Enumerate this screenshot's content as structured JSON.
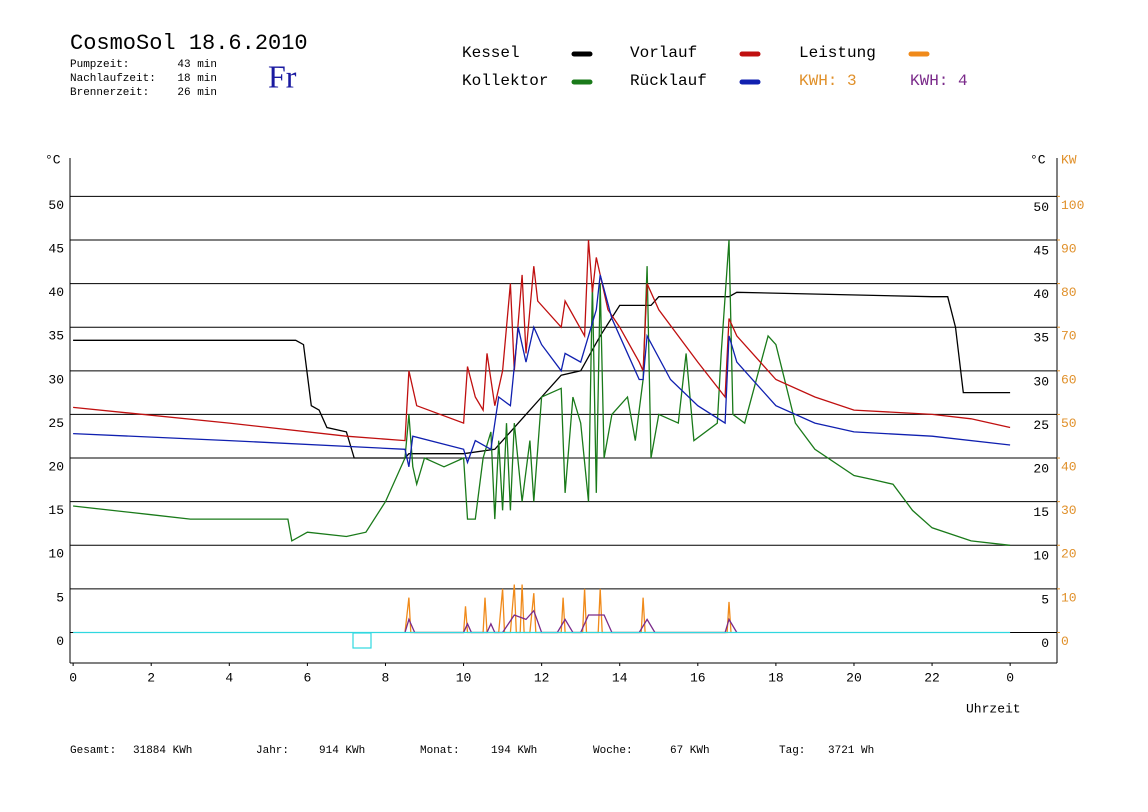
{
  "chart_data": {
    "type": "line",
    "title": "CosmoSol 18.6.2010",
    "weekday": "Fr",
    "stats": [
      {
        "label": "Pumpzeit:",
        "value": "43 min"
      },
      {
        "label": "Nachlaufzeit:",
        "value": "18 min"
      },
      {
        "label": "Brennerzeit:",
        "value": "26 min"
      }
    ],
    "y_unit_left": "°C",
    "y_unit_right": "°C",
    "y2_unit": "KW",
    "x_label": "Uhrzeit",
    "kwh_labels": [
      {
        "text": "KWH: 3",
        "color": "#e0902a"
      },
      {
        "text": "KWH: 4",
        "color": "#7a2a8a"
      }
    ],
    "totals": [
      {
        "label": "Gesamt:",
        "value": "31884 KWh"
      },
      {
        "label": "Jahr:",
        "value": "914 KWh"
      },
      {
        "label": "Monat:",
        "value": "194 KWh"
      },
      {
        "label": "Woche:",
        "value": "67 KWh"
      },
      {
        "label": "Tag:",
        "value": "3721 Wh"
      }
    ],
    "xlim": [
      -0.08,
      25.2
    ],
    "xticks": [
      0,
      2,
      4,
      6,
      8,
      10,
      12,
      14,
      16,
      18,
      20,
      22,
      {
        "value": 24,
        "label": "0"
      }
    ],
    "ylim": [
      -3.5,
      54.4
    ],
    "yticks": [
      0,
      5,
      10,
      15,
      20,
      25,
      30,
      35,
      40,
      45,
      50
    ],
    "y2lim": [
      -7,
      108.8
    ],
    "y2ticks": [
      0,
      10,
      20,
      30,
      40,
      50,
      60,
      70,
      80,
      90,
      100
    ],
    "grid": true,
    "series": [
      {
        "name": "Kessel",
        "color": "#000000",
        "x": [
          0,
          5.7,
          5.9,
          6.1,
          6.3,
          6.5,
          7.0,
          7.2,
          8.5,
          8.6,
          10,
          10.8,
          11.2,
          11.6,
          12.0,
          12.5,
          13.0,
          13.5,
          14,
          14.8,
          15,
          16.8,
          17,
          22,
          22.4,
          22.6,
          22.8,
          24
        ],
        "values": [
          33.5,
          33.5,
          33,
          26,
          25.5,
          23.5,
          23,
          20,
          20,
          20.5,
          20.5,
          21,
          23,
          25,
          27,
          29.5,
          30,
          34,
          37.5,
          37.5,
          38.5,
          38.5,
          39,
          38.5,
          38.5,
          35,
          27.5,
          27.5
        ]
      },
      {
        "name": "Kollektor",
        "color": "#1a7a1a",
        "x": [
          0,
          1,
          2,
          3,
          4,
          5.5,
          5.6,
          6,
          7,
          7.5,
          8,
          8.5,
          8.6,
          8.7,
          8.8,
          9,
          9.5,
          10,
          10.1,
          10.3,
          10.5,
          10.7,
          10.8,
          10.9,
          11,
          11.1,
          11.2,
          11.3,
          11.5,
          11.7,
          11.8,
          12,
          12.5,
          12.6,
          12.8,
          13,
          13.2,
          13.3,
          13.4,
          13.5,
          13.6,
          13.8,
          14,
          14.2,
          14.4,
          14.6,
          14.7,
          14.8,
          15,
          15.5,
          15.7,
          15.9,
          16.5,
          16.6,
          16.8,
          16.9,
          17.2,
          17.5,
          17.8,
          18,
          18.5,
          19,
          20,
          20.5,
          21,
          21.5,
          22,
          23,
          24
        ],
        "values": [
          14.5,
          14,
          13.5,
          13,
          13,
          13,
          10.5,
          11.5,
          11,
          11.5,
          15,
          20,
          25,
          19,
          17,
          20,
          19,
          20,
          13,
          13,
          20,
          23,
          13,
          22,
          14,
          24,
          14,
          24,
          15,
          22,
          15,
          27,
          28,
          16,
          27,
          24,
          15,
          40,
          16,
          40,
          20,
          25,
          26,
          27,
          22,
          29,
          42,
          20,
          25,
          24,
          32,
          22,
          24,
          32,
          45,
          25,
          24,
          29,
          34,
          33,
          24,
          21,
          18,
          17.5,
          17,
          14,
          12,
          10.5,
          10
        ]
      },
      {
        "name": "Vorlauf",
        "color": "#c01010",
        "x": [
          0,
          4,
          7,
          8.5,
          8.6,
          8.8,
          10,
          10.1,
          10.3,
          10.5,
          10.6,
          10.8,
          11,
          11.2,
          11.3,
          11.5,
          11.6,
          11.8,
          11.9,
          12.5,
          12.6,
          13.1,
          13.2,
          13.3,
          13.4,
          13.5,
          13.7,
          14,
          14.5,
          14.6,
          14.7,
          15,
          16,
          16.7,
          16.8,
          17,
          18,
          19,
          20,
          22,
          23,
          24
        ],
        "values": [
          25.8,
          24,
          22.5,
          22,
          30,
          26,
          24,
          30.5,
          27,
          25.5,
          32,
          26,
          30,
          40,
          30,
          41,
          32,
          42,
          38,
          35,
          38,
          34,
          45,
          39,
          43,
          41,
          37,
          35,
          31,
          30,
          40,
          37,
          31,
          27,
          36,
          34,
          29,
          27,
          25.5,
          25,
          24.5,
          23.5
        ]
      },
      {
        "name": "Rücklauf",
        "color": "#1020b0",
        "x": [
          0,
          4,
          8.5,
          8.6,
          8.7,
          10,
          10.1,
          10.3,
          10.7,
          10.9,
          11.2,
          11.4,
          11.6,
          11.8,
          12,
          12.5,
          12.6,
          13,
          13.2,
          13.4,
          13.5,
          13.8,
          14.5,
          14.6,
          14.7,
          15.3,
          16,
          16.7,
          16.8,
          17,
          18,
          19,
          20,
          22,
          24
        ],
        "values": [
          22.8,
          22,
          21,
          19,
          22.5,
          21,
          19.5,
          22,
          21,
          27,
          26,
          35,
          31,
          35,
          33,
          30,
          32,
          31,
          34,
          37,
          41,
          36,
          29,
          29,
          34,
          29,
          26,
          24,
          34,
          31,
          26,
          24,
          23,
          22.5,
          21.5
        ]
      },
      {
        "name": "Leistung",
        "color": "#f08a1a",
        "axis": "y2",
        "x": [
          8.5,
          8.6,
          8.65,
          10,
          10.05,
          10.1,
          10.5,
          10.55,
          10.6,
          10.9,
          11.0,
          11.05,
          11.2,
          11.3,
          11.35,
          11.45,
          11.5,
          11.55,
          11.7,
          11.8,
          11.85,
          12.5,
          12.55,
          12.6,
          13.05,
          13.1,
          13.15,
          13.45,
          13.5,
          13.55,
          14.55,
          14.6,
          14.65,
          16.75,
          16.8,
          16.85
        ],
        "values": [
          0,
          8,
          0,
          0,
          6,
          0,
          0,
          8,
          0,
          0,
          10,
          0,
          0,
          11,
          0,
          0,
          11,
          0,
          0,
          9,
          0,
          0,
          8,
          0,
          0,
          10,
          0,
          0,
          10,
          0,
          0,
          8,
          0,
          0,
          7,
          0
        ]
      },
      {
        "color": "#7a2a8a",
        "axis": "y2",
        "x": [
          8.5,
          8.6,
          8.75,
          10,
          10.1,
          10.2,
          10.6,
          10.7,
          10.8,
          11,
          11.3,
          11.6,
          11.8,
          12,
          12.4,
          12.6,
          12.8,
          13,
          13.2,
          13.6,
          13.8,
          14.5,
          14.7,
          14.9,
          16.7,
          16.8,
          17
        ],
        "values": [
          0,
          3,
          0,
          0,
          2,
          0,
          0,
          2,
          0,
          0,
          4,
          3,
          5,
          0,
          0,
          3,
          0,
          0,
          4,
          4,
          0,
          0,
          3,
          0,
          0,
          3,
          0
        ]
      },
      {
        "color": "#30d8e0",
        "x": [
          0,
          24
        ],
        "values": [
          0,
          0
        ]
      }
    ]
  }
}
